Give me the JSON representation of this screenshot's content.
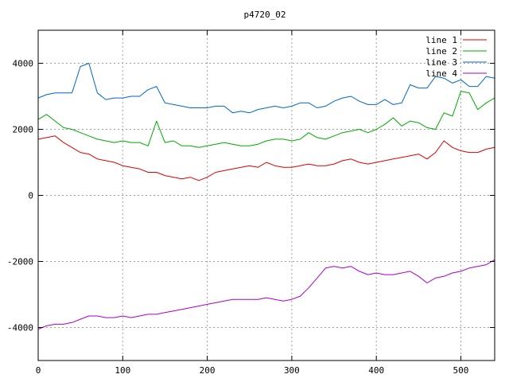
{
  "chart_data": {
    "type": "line",
    "title": "p4720_02",
    "xlabel": "",
    "ylabel": "",
    "xlim": [
      0,
      540
    ],
    "ylim": [
      -5000,
      5000
    ],
    "x_ticks": [
      0,
      100,
      200,
      300,
      400,
      500
    ],
    "y_ticks": [
      -4000,
      -2000,
      0,
      2000,
      4000
    ],
    "x_tick_labels": [
      "0",
      "100",
      "200",
      "300",
      "400",
      "500"
    ],
    "y_tick_labels": [
      "-4000",
      "-2000",
      "0",
      "2000",
      "4000"
    ],
    "grid": true,
    "legend_position": "top-right",
    "x": [
      0,
      10,
      20,
      30,
      40,
      50,
      60,
      70,
      80,
      90,
      100,
      110,
      120,
      130,
      140,
      150,
      160,
      170,
      180,
      190,
      200,
      210,
      220,
      230,
      240,
      250,
      260,
      270,
      280,
      290,
      300,
      310,
      320,
      330,
      340,
      350,
      360,
      370,
      380,
      390,
      400,
      410,
      420,
      430,
      440,
      450,
      460,
      470,
      480,
      490,
      500,
      510,
      520,
      530,
      540
    ],
    "series": [
      {
        "name": "line 1",
        "color": "#dd0000",
        "values": [
          1700,
          1750,
          1800,
          1600,
          1450,
          1300,
          1250,
          1100,
          1050,
          1000,
          900,
          850,
          800,
          700,
          700,
          600,
          550,
          500,
          550,
          450,
          550,
          700,
          750,
          800,
          850,
          900,
          850,
          1000,
          900,
          850,
          850,
          900,
          950,
          900,
          900,
          950,
          1050,
          1100,
          1000,
          950,
          1000,
          1050,
          1100,
          1150,
          1200,
          1250,
          1100,
          1300,
          1650,
          1450,
          1350,
          1300,
          1300,
          1400,
          1450
        ]
      },
      {
        "name": "line 2",
        "color": "#00aa00",
        "values": [
          2300,
          2450,
          2250,
          2050,
          2000,
          1900,
          1800,
          1700,
          1650,
          1600,
          1650,
          1600,
          1600,
          1500,
          2250,
          1600,
          1650,
          1500,
          1500,
          1450,
          1500,
          1550,
          1600,
          1550,
          1500,
          1500,
          1550,
          1650,
          1700,
          1700,
          1650,
          1700,
          1900,
          1750,
          1700,
          1800,
          1900,
          1950,
          2000,
          1900,
          2000,
          2150,
          2350,
          2100,
          2250,
          2200,
          2050,
          2000,
          2500,
          2400,
          3150,
          3100,
          2600,
          2800,
          2950
        ]
      },
      {
        "name": "line 3",
        "color": "#0066cc",
        "values": [
          2950,
          3050,
          3100,
          3100,
          3100,
          3900,
          4000,
          3100,
          2900,
          2950,
          2950,
          3000,
          3000,
          3200,
          3300,
          2800,
          2750,
          2700,
          2650,
          2650,
          2650,
          2700,
          2700,
          2500,
          2550,
          2500,
          2600,
          2650,
          2700,
          2650,
          2700,
          2800,
          2800,
          2650,
          2700,
          2850,
          2950,
          3000,
          2850,
          2750,
          2750,
          2900,
          2750,
          2800,
          3350,
          3250,
          3250,
          3600,
          3550,
          3400,
          3500,
          3300,
          3300,
          3600,
          3550
        ]
      },
      {
        "name": "line 4",
        "color": "#aa00cc",
        "values": [
          -4050,
          -3950,
          -3900,
          -3900,
          -3850,
          -3750,
          -3650,
          -3650,
          -3700,
          -3700,
          -3650,
          -3700,
          -3650,
          -3600,
          -3600,
          -3550,
          -3500,
          -3450,
          -3400,
          -3350,
          -3300,
          -3250,
          -3200,
          -3150,
          -3150,
          -3150,
          -3150,
          -3100,
          -3150,
          -3200,
          -3150,
          -3050,
          -2800,
          -2500,
          -2200,
          -2150,
          -2200,
          -2150,
          -2300,
          -2400,
          -2350,
          -2400,
          -2400,
          -2350,
          -2300,
          -2450,
          -2650,
          -2500,
          -2450,
          -2350,
          -2300,
          -2200,
          -2150,
          -2100,
          -1950
        ]
      }
    ]
  }
}
